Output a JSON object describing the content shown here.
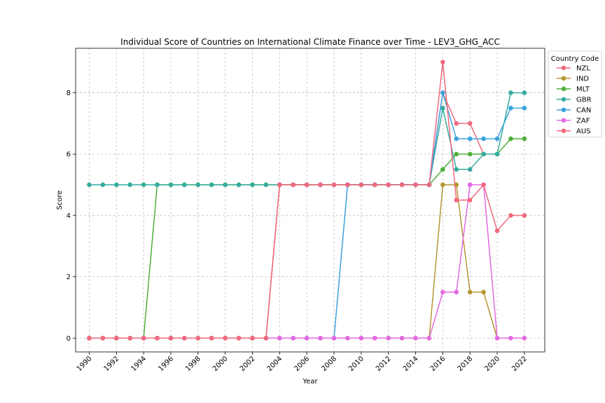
{
  "chart_data": {
    "type": "line",
    "title": "Individual Score of Countries on International Climate Finance over Time - LEV3_GHG_ACC",
    "xlabel": "Year",
    "ylabel": "Score",
    "xlim": [
      1989,
      2023.5
    ],
    "ylim": [
      -0.45,
      9.45
    ],
    "xticks": [
      1990,
      1992,
      1994,
      1996,
      1998,
      2000,
      2002,
      2004,
      2006,
      2008,
      2010,
      2012,
      2014,
      2016,
      2018,
      2020,
      2022
    ],
    "yticks": [
      0,
      2,
      4,
      6,
      8
    ],
    "grid": true,
    "legend": {
      "title": "Country Code",
      "placement": "top-right outside"
    },
    "x": [
      1990,
      1991,
      1992,
      1993,
      1994,
      1995,
      1996,
      1997,
      1998,
      1999,
      2000,
      2001,
      2002,
      2003,
      2004,
      2005,
      2006,
      2007,
      2008,
      2009,
      2010,
      2011,
      2012,
      2013,
      2014,
      2015,
      2016,
      2017,
      2018,
      2019,
      2020,
      2021,
      2022
    ],
    "series": [
      {
        "name": "NZL",
        "color": "#f0697d",
        "values": [
          0,
          0,
          0,
          0,
          0,
          0,
          0,
          0,
          0,
          0,
          0,
          0,
          0,
          0,
          5,
          5,
          5,
          5,
          5,
          5,
          5,
          5,
          5,
          5,
          5,
          5,
          8,
          7,
          7,
          6,
          6,
          null,
          null
        ]
      },
      {
        "name": "IND",
        "color": "#b5962f",
        "values": [
          0,
          0,
          0,
          0,
          0,
          0,
          0,
          0,
          0,
          0,
          0,
          0,
          0,
          0,
          0,
          0,
          0,
          0,
          0,
          0,
          0,
          0,
          0,
          0,
          0,
          0,
          5,
          5,
          1.5,
          1.5,
          0,
          null,
          null
        ]
      },
      {
        "name": "MLT",
        "color": "#4faf3b",
        "values": [
          0,
          0,
          0,
          0,
          0,
          5,
          5,
          5,
          5,
          5,
          5,
          5,
          5,
          5,
          5,
          5,
          5,
          5,
          5,
          5,
          5,
          5,
          5,
          5,
          5,
          5,
          5.5,
          6,
          6,
          6,
          6,
          6.5,
          6.5
        ]
      },
      {
        "name": "GBR",
        "color": "#36ada0",
        "values": [
          5,
          5,
          5,
          5,
          5,
          5,
          5,
          5,
          5,
          5,
          5,
          5,
          5,
          5,
          5,
          5,
          5,
          5,
          5,
          5,
          5,
          5,
          5,
          5,
          5,
          5,
          7.5,
          5.5,
          5.5,
          6,
          6,
          8,
          8
        ]
      },
      {
        "name": "CAN",
        "color": "#3ba3dd",
        "values": [
          0,
          0,
          0,
          0,
          0,
          0,
          0,
          0,
          0,
          0,
          0,
          0,
          0,
          0,
          0,
          0,
          0,
          0,
          0,
          5,
          5,
          5,
          5,
          5,
          5,
          5,
          8,
          6.5,
          6.5,
          6.5,
          6.5,
          7.5,
          7.5
        ]
      },
      {
        "name": "ZAF",
        "color": "#e36ae3",
        "values": [
          0,
          0,
          0,
          0,
          0,
          0,
          0,
          0,
          0,
          0,
          0,
          0,
          0,
          0,
          0,
          0,
          0,
          0,
          0,
          0,
          0,
          0,
          0,
          0,
          0,
          0,
          1.5,
          1.5,
          5,
          5,
          0,
          0,
          0
        ]
      },
      {
        "name": "AUS",
        "color": "#f0697d",
        "values": [
          0,
          0,
          0,
          0,
          0,
          0,
          0,
          0,
          0,
          0,
          0,
          0,
          0,
          0,
          5,
          5,
          5,
          5,
          5,
          5,
          5,
          5,
          5,
          5,
          5,
          5,
          9,
          4.5,
          4.5,
          5,
          3.5,
          4,
          4
        ]
      }
    ]
  }
}
